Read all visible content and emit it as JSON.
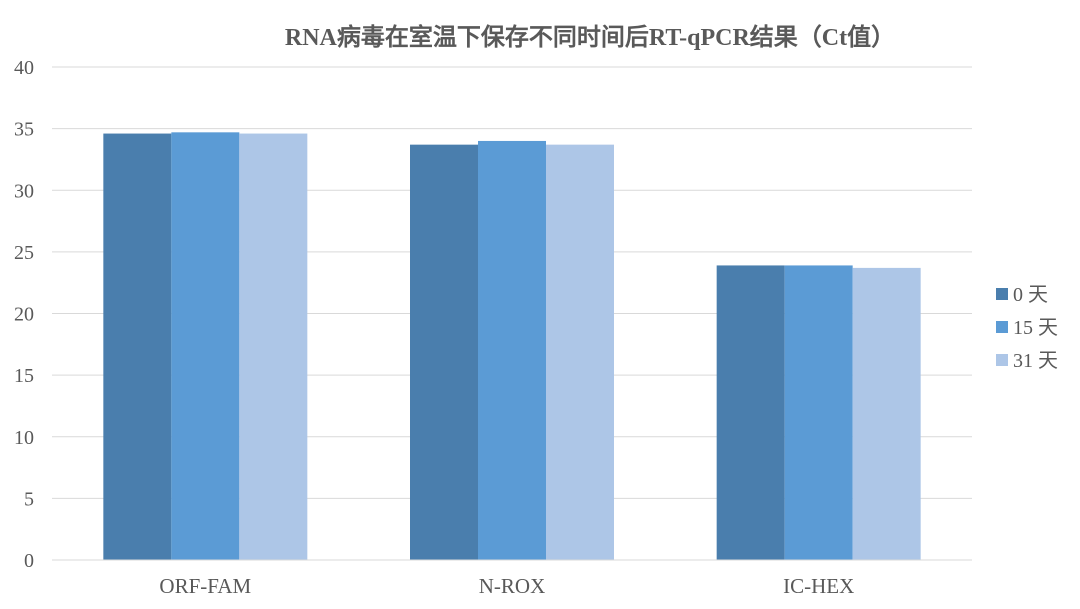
{
  "chart_data": {
    "type": "bar",
    "title": "RNA病毒在室温下保存不同时间后RT-qPCR结果（Ct值）",
    "xlabel": "",
    "ylabel": "",
    "categories": [
      "ORF-FAM",
      "N-ROX",
      "IC-HEX"
    ],
    "series": [
      {
        "name": "0 天",
        "values": [
          34.6,
          33.7,
          23.9
        ],
        "color": "#4a7ead"
      },
      {
        "name": "15 天",
        "values": [
          34.7,
          34.0,
          23.9
        ],
        "color": "#5b9bd5"
      },
      {
        "name": "31 天",
        "values": [
          34.6,
          33.7,
          23.7
        ],
        "color": "#adc6e7"
      }
    ],
    "ylim": [
      0,
      40
    ],
    "yticks": [
      0,
      5,
      10,
      15,
      20,
      25,
      30,
      35,
      40
    ],
    "grid": true,
    "legend_position": "right"
  }
}
